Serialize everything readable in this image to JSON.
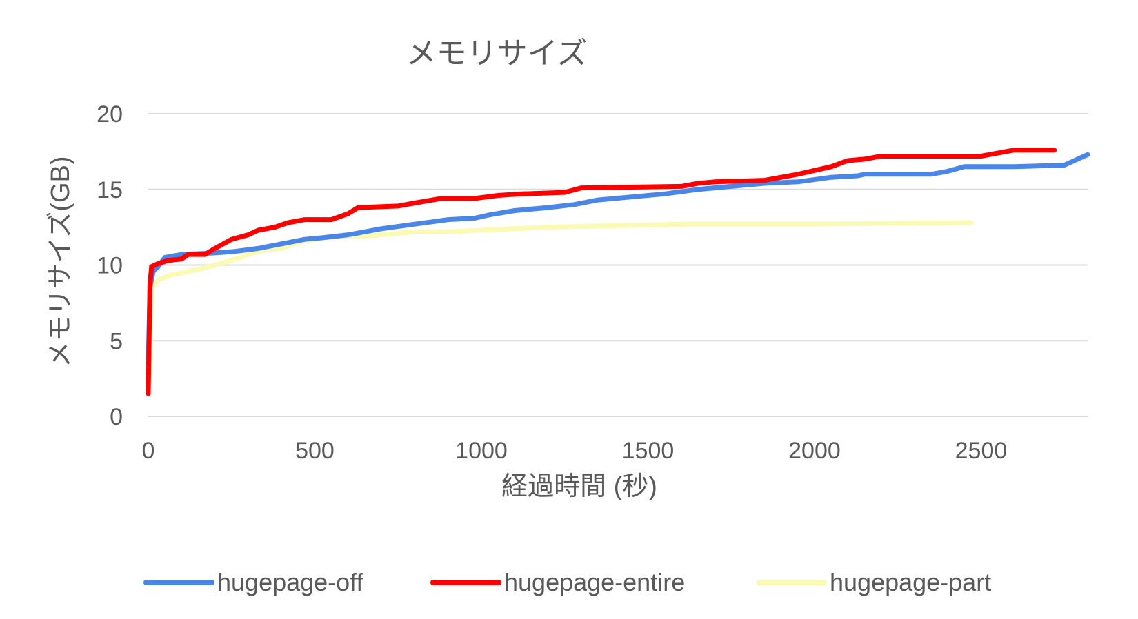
{
  "chart_data": {
    "type": "line",
    "title": "メモリサイズ",
    "xlabel": "経過時間 (秒)",
    "ylabel": "メモリサイズ(GB)",
    "xlim": [
      0,
      2820
    ],
    "ylim": [
      0,
      20
    ],
    "xticks": [
      "0",
      "500",
      "1000",
      "1500",
      "2000",
      "2500"
    ],
    "yticks": [
      "0",
      "5",
      "10",
      "15",
      "20"
    ],
    "grid": true,
    "legend_position": "bottom",
    "series": [
      {
        "name": "hugepage-off",
        "color": "#4a86e8",
        "points": [
          [
            0,
            3.5
          ],
          [
            5,
            8.5
          ],
          [
            15,
            9.6
          ],
          [
            30,
            9.9
          ],
          [
            50,
            10.5
          ],
          [
            100,
            10.7
          ],
          [
            200,
            10.8
          ],
          [
            260,
            10.9
          ],
          [
            330,
            11.1
          ],
          [
            400,
            11.4
          ],
          [
            470,
            11.7
          ],
          [
            520,
            11.8
          ],
          [
            600,
            12.0
          ],
          [
            700,
            12.4
          ],
          [
            800,
            12.7
          ],
          [
            900,
            13.0
          ],
          [
            980,
            13.1
          ],
          [
            1020,
            13.3
          ],
          [
            1100,
            13.6
          ],
          [
            1200,
            13.8
          ],
          [
            1280,
            14.0
          ],
          [
            1350,
            14.3
          ],
          [
            1450,
            14.5
          ],
          [
            1550,
            14.7
          ],
          [
            1650,
            15.0
          ],
          [
            1750,
            15.2
          ],
          [
            1850,
            15.4
          ],
          [
            1950,
            15.5
          ],
          [
            2050,
            15.8
          ],
          [
            2130,
            15.9
          ],
          [
            2150,
            16.0
          ],
          [
            2350,
            16.0
          ],
          [
            2400,
            16.2
          ],
          [
            2450,
            16.5
          ],
          [
            2600,
            16.5
          ],
          [
            2750,
            16.6
          ],
          [
            2780,
            16.9
          ],
          [
            2810,
            17.2
          ],
          [
            2820,
            17.3
          ]
        ]
      },
      {
        "name": "hugepage-entire",
        "color": "#ff0000",
        "points": [
          [
            0,
            1.5
          ],
          [
            5,
            8.7
          ],
          [
            10,
            9.9
          ],
          [
            30,
            10.1
          ],
          [
            60,
            10.3
          ],
          [
            100,
            10.4
          ],
          [
            120,
            10.7
          ],
          [
            170,
            10.7
          ],
          [
            200,
            11.1
          ],
          [
            250,
            11.7
          ],
          [
            300,
            12.0
          ],
          [
            330,
            12.3
          ],
          [
            380,
            12.5
          ],
          [
            420,
            12.8
          ],
          [
            470,
            13.0
          ],
          [
            550,
            13.0
          ],
          [
            600,
            13.4
          ],
          [
            630,
            13.8
          ],
          [
            750,
            13.9
          ],
          [
            800,
            14.1
          ],
          [
            880,
            14.4
          ],
          [
            980,
            14.4
          ],
          [
            1050,
            14.6
          ],
          [
            1120,
            14.7
          ],
          [
            1250,
            14.8
          ],
          [
            1300,
            15.1
          ],
          [
            1600,
            15.2
          ],
          [
            1650,
            15.4
          ],
          [
            1700,
            15.5
          ],
          [
            1850,
            15.6
          ],
          [
            1950,
            16.0
          ],
          [
            2050,
            16.5
          ],
          [
            2100,
            16.9
          ],
          [
            2150,
            17.0
          ],
          [
            2200,
            17.2
          ],
          [
            2500,
            17.2
          ],
          [
            2550,
            17.4
          ],
          [
            2600,
            17.6
          ],
          [
            2720,
            17.6
          ]
        ]
      },
      {
        "name": "hugepage-part",
        "color": "#fafab4",
        "points": [
          [
            0,
            1.8
          ],
          [
            5,
            3.0
          ],
          [
            10,
            8.5
          ],
          [
            30,
            9.0
          ],
          [
            60,
            9.3
          ],
          [
            100,
            9.5
          ],
          [
            150,
            9.7
          ],
          [
            200,
            10.0
          ],
          [
            250,
            10.3
          ],
          [
            300,
            10.7
          ],
          [
            350,
            11.0
          ],
          [
            400,
            11.1
          ],
          [
            450,
            11.5
          ],
          [
            500,
            11.7
          ],
          [
            560,
            11.9
          ],
          [
            650,
            11.9
          ],
          [
            700,
            12.0
          ],
          [
            800,
            12.2
          ],
          [
            900,
            12.2
          ],
          [
            1000,
            12.3
          ],
          [
            1100,
            12.4
          ],
          [
            1200,
            12.5
          ],
          [
            1400,
            12.6
          ],
          [
            1600,
            12.7
          ],
          [
            1800,
            12.7
          ],
          [
            2000,
            12.7
          ],
          [
            2200,
            12.75
          ],
          [
            2470,
            12.8
          ]
        ]
      }
    ]
  }
}
